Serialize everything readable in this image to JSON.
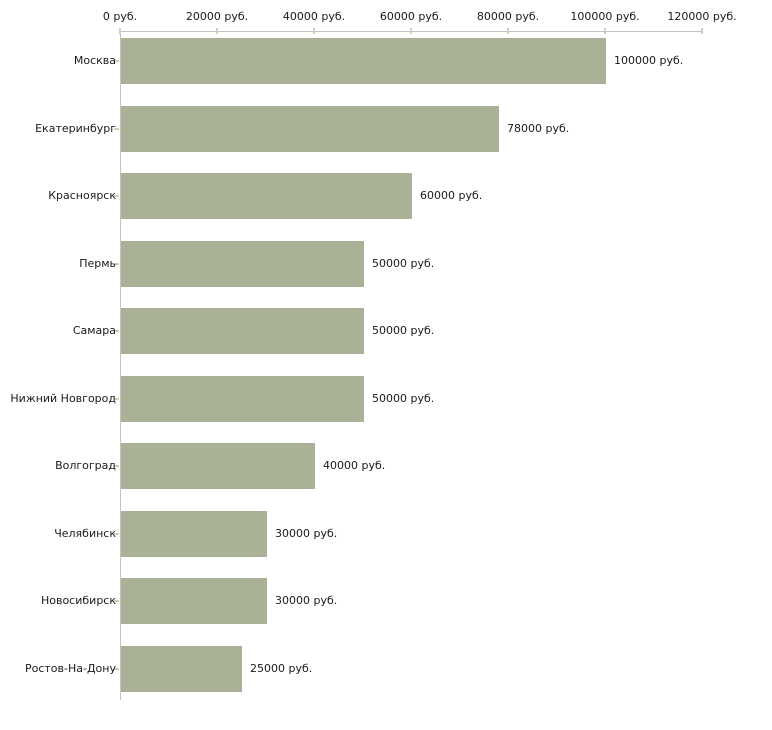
{
  "chart_data": {
    "type": "bar",
    "orientation": "horizontal",
    "title": "",
    "xlabel": "",
    "ylabel": "",
    "grid": false,
    "legend": "none",
    "categories": [
      "Москва",
      "Екатеринбург",
      "Красноярск",
      "Пермь",
      "Самара",
      "Нижний Новгород",
      "Волгоград",
      "Челябинск",
      "Новосибирск",
      "Ростов-На-Дону"
    ],
    "values": [
      100000,
      78000,
      60000,
      50000,
      50000,
      50000,
      40000,
      30000,
      30000,
      25000
    ],
    "value_labels": [
      "100000 руб.",
      "78000 руб.",
      "60000 руб.",
      "50000 руб.",
      "50000 руб.",
      "50000 руб.",
      "40000 руб.",
      "30000 руб.",
      "30000 руб.",
      "25000 руб."
    ],
    "x_axis": {
      "position": "top",
      "xlim": [
        0,
        120000
      ],
      "tick_values": [
        0,
        20000,
        40000,
        60000,
        80000,
        100000,
        120000
      ],
      "tick_labels": [
        "0 руб.",
        "20000 руб.",
        "40000 руб.",
        "60000 руб.",
        "80000 руб.",
        "100000 руб.",
        "120000 руб."
      ]
    },
    "colors": {
      "bar_fill": "#a9b196",
      "axis_line": "#c3c3c3",
      "tick_mark": "#cdd0b5",
      "text": "#1a1a1a",
      "background": "#ffffff"
    }
  }
}
